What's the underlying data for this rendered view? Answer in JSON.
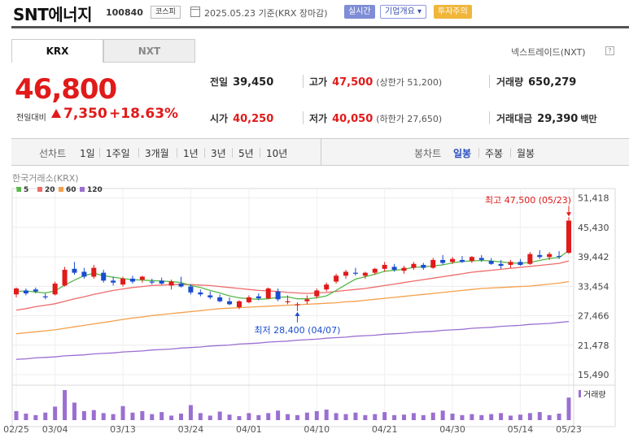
{
  "header": {
    "title": "SNT에너지",
    "code": "100840",
    "market": "코스피",
    "date_text": "2025.05.23  기준(KRX 장마감)",
    "btn_realtime": "실시간",
    "btn_overview": "기업개요 ▾",
    "btn_warning": "투자주의"
  },
  "tabs": {
    "krx": "KRX",
    "nxt": "NXT",
    "nxt_link": "넥스트레이드(NXT)",
    "help": "?"
  },
  "quote": {
    "price": "46,800",
    "change_label": "전일대비",
    "change_value": "7,350",
    "change_pct": "+18.63%"
  },
  "stats": {
    "prev_close_label": "전일",
    "prev_close": "39,450",
    "high_label": "고가",
    "high": "47,500",
    "upper_limit": "(상한가 51,200)",
    "volume_label": "거래량",
    "volume": "650,279",
    "open_label": "시가",
    "open": "40,250",
    "low_label": "저가",
    "low": "40,050",
    "lower_limit": "(하한가 27,650)",
    "turnover_label": "거래대금",
    "turnover": "29,390",
    "turnover_unit": "백만"
  },
  "period_bar": {
    "line_label": "선차트",
    "periods": [
      "1일",
      "1주일",
      "3개월",
      "1년",
      "3년",
      "5년",
      "10년"
    ],
    "candle_label": "봉차트",
    "candle_types": [
      "일봉",
      "주봉",
      "월봉"
    ],
    "candle_active": "일봉"
  },
  "colors": {
    "up": "#e11a1a",
    "down": "#1a4cd1",
    "ma5": "#57b846",
    "ma20": "#ee6b6b",
    "ma60": "#f5a04a",
    "ma120": "#9b6fd1",
    "volume": "#9b6fd1"
  },
  "chart_data": {
    "type": "candlestick",
    "source_label": "한국거래소(KRX)",
    "legend": [
      {
        "name": "5",
        "color": "#57b846"
      },
      {
        "name": "20",
        "color": "#ee6b6b"
      },
      {
        "name": "60",
        "color": "#f5a04a"
      },
      {
        "name": "120",
        "color": "#9b6fd1"
      }
    ],
    "ylim": [
      14500,
      52000
    ],
    "y_ticks": [
      "51,418",
      "45,430",
      "39,442",
      "33,454",
      "27,466",
      "21,478",
      "15,490"
    ],
    "y_tick_values": [
      51418,
      45430,
      39442,
      33454,
      27466,
      21478,
      15490
    ],
    "x_ticks": [
      {
        "label": "02/25",
        "index": 0
      },
      {
        "label": "03/04",
        "index": 4
      },
      {
        "label": "03/13",
        "index": 11
      },
      {
        "label": "03/24",
        "index": 18
      },
      {
        "label": "04/01",
        "index": 24
      },
      {
        "label": "04/10",
        "index": 31
      },
      {
        "label": "04/21",
        "index": 38
      },
      {
        "label": "04/30",
        "index": 45
      },
      {
        "label": "05/14",
        "index": 52
      },
      {
        "label": "05/23",
        "index": 57
      }
    ],
    "high_annotation": "최고 47,500 (05/23)",
    "low_annotation": "최저 28,400 (04/07)",
    "volume_label": "거래량",
    "candles": [
      [
        31800,
        33200,
        31200,
        33000
      ],
      [
        32600,
        33000,
        31600,
        32000
      ],
      [
        32800,
        33200,
        32000,
        32400
      ],
      [
        31400,
        32000,
        30800,
        31200
      ],
      [
        31800,
        34400,
        31600,
        34000
      ],
      [
        33600,
        37400,
        33400,
        36800
      ],
      [
        37000,
        38400,
        35800,
        36200
      ],
      [
        36400,
        37200,
        35000,
        35400
      ],
      [
        35400,
        37800,
        35000,
        37200
      ],
      [
        36200,
        36800,
        34200,
        34600
      ],
      [
        34600,
        35400,
        33600,
        34200
      ],
      [
        33800,
        35400,
        33400,
        35000
      ],
      [
        35000,
        35600,
        34000,
        34400
      ],
      [
        34800,
        35600,
        34200,
        35400
      ],
      [
        34400,
        35000,
        33800,
        34200
      ],
      [
        34600,
        35200,
        33800,
        34000
      ],
      [
        33600,
        34800,
        32800,
        34400
      ],
      [
        34000,
        35400,
        33200,
        33400
      ],
      [
        33400,
        33800,
        31800,
        32200
      ],
      [
        32200,
        32800,
        31400,
        31800
      ],
      [
        31600,
        32400,
        30800,
        31200
      ],
      [
        31200,
        31800,
        30200,
        30400
      ],
      [
        30400,
        31200,
        29600,
        29800
      ],
      [
        29200,
        30600,
        28800,
        30400
      ],
      [
        30200,
        31600,
        30000,
        31200
      ],
      [
        31400,
        32000,
        30600,
        31000
      ],
      [
        31000,
        33200,
        30800,
        33000
      ],
      [
        32400,
        33000,
        30400,
        30800
      ],
      [
        30200,
        31600,
        29800,
        30400
      ],
      [
        29600,
        30200,
        28400,
        29800
      ],
      [
        30400,
        31600,
        29800,
        30800
      ],
      [
        31400,
        33000,
        31000,
        32600
      ],
      [
        32800,
        34200,
        32400,
        33800
      ],
      [
        34400,
        36000,
        34000,
        35600
      ],
      [
        35600,
        36800,
        35000,
        36400
      ],
      [
        36200,
        37200,
        35600,
        36000
      ],
      [
        35600,
        36400,
        35000,
        36200
      ],
      [
        36200,
        37200,
        35800,
        37000
      ],
      [
        37000,
        38400,
        36400,
        37800
      ],
      [
        37400,
        38000,
        36400,
        36800
      ],
      [
        36600,
        37600,
        36000,
        37200
      ],
      [
        37200,
        38400,
        36800,
        38000
      ],
      [
        37800,
        38200,
        36800,
        37200
      ],
      [
        37200,
        39200,
        37000,
        38800
      ],
      [
        38800,
        39800,
        37800,
        38200
      ],
      [
        38400,
        39400,
        38000,
        39000
      ],
      [
        38800,
        39600,
        38200,
        38400
      ],
      [
        38600,
        39600,
        38200,
        39400
      ],
      [
        39200,
        39800,
        38400,
        38800
      ],
      [
        38600,
        39200,
        37800,
        38000
      ],
      [
        38000,
        38800,
        37000,
        37600
      ],
      [
        37800,
        38800,
        37200,
        38400
      ],
      [
        38400,
        39000,
        37600,
        37800
      ],
      [
        38000,
        40400,
        37800,
        40000
      ],
      [
        39800,
        40800,
        39000,
        39400
      ],
      [
        39400,
        40400,
        38800,
        40000
      ],
      [
        39600,
        40600,
        39000,
        39450
      ],
      [
        40250,
        47500,
        40050,
        46800
      ]
    ],
    "volumes": [
      18,
      13,
      10,
      15,
      27,
      60,
      35,
      18,
      20,
      14,
      12,
      28,
      15,
      18,
      12,
      16,
      9,
      13,
      30,
      14,
      9,
      17,
      11,
      8,
      14,
      10,
      14,
      19,
      12,
      10,
      15,
      18,
      21,
      14,
      12,
      15,
      10,
      12,
      16,
      10,
      11,
      14,
      10,
      15,
      19,
      13,
      10,
      12,
      10,
      12,
      14,
      9,
      11,
      14,
      16,
      10,
      13,
      45
    ],
    "ma5": [
      32400,
      32500,
      32300,
      32100,
      32500,
      33700,
      34700,
      35600,
      36100,
      35600,
      35300,
      35000,
      34800,
      34700,
      34600,
      34500,
      34400,
      34200,
      33600,
      33200,
      32600,
      32100,
      31500,
      31100,
      30900,
      30800,
      30900,
      31200,
      31300,
      30900,
      30900,
      31100,
      31500,
      32600,
      33800,
      34900,
      35400,
      35900,
      36500,
      36700,
      36900,
      37300,
      37400,
      37600,
      37800,
      38200,
      38500,
      38600,
      38700,
      38600,
      38400,
      38200,
      38100,
      38300,
      38700,
      39100,
      39300,
      40700
    ],
    "ma20": [
      28600,
      28900,
      29300,
      29600,
      29900,
      30400,
      30900,
      31300,
      31800,
      32200,
      32600,
      32900,
      33200,
      33400,
      33600,
      33700,
      33800,
      33800,
      33800,
      33700,
      33600,
      33400,
      33200,
      33000,
      32800,
      32600,
      32500,
      32400,
      32200,
      32100,
      32000,
      32100,
      32200,
      32400,
      32600,
      32800,
      33000,
      33300,
      33600,
      33900,
      34200,
      34500,
      34800,
      35100,
      35400,
      35700,
      36000,
      36300,
      36500,
      36700,
      36900,
      37100,
      37300,
      37500,
      37700,
      37900,
      38100,
      38600
    ],
    "ma60": [
      23800,
      24000,
      24200,
      24400,
      24600,
      24900,
      25200,
      25500,
      25800,
      26100,
      26400,
      26700,
      27000,
      27200,
      27500,
      27700,
      27900,
      28100,
      28300,
      28500,
      28700,
      28900,
      29000,
      29100,
      29200,
      29300,
      29400,
      29500,
      29600,
      29700,
      29800,
      29900,
      30000,
      30100,
      30300,
      30400,
      30600,
      30800,
      31000,
      31200,
      31400,
      31600,
      31800,
      32000,
      32200,
      32400,
      32600,
      32800,
      33000,
      33100,
      33200,
      33300,
      33400,
      33500,
      33700,
      33900,
      34100,
      34400
    ],
    "ma120": [
      18600,
      18700,
      18900,
      19000,
      19100,
      19300,
      19400,
      19500,
      19700,
      19800,
      19900,
      20100,
      20200,
      20300,
      20500,
      20600,
      20700,
      20900,
      21000,
      21100,
      21300,
      21400,
      21500,
      21700,
      21800,
      21900,
      22100,
      22200,
      22300,
      22500,
      22600,
      22700,
      22900,
      23000,
      23100,
      23300,
      23400,
      23500,
      23700,
      23800,
      23900,
      24100,
      24200,
      24300,
      24500,
      24600,
      24700,
      24900,
      25000,
      25100,
      25300,
      25400,
      25500,
      25700,
      25800,
      25900,
      26100,
      26300
    ]
  }
}
